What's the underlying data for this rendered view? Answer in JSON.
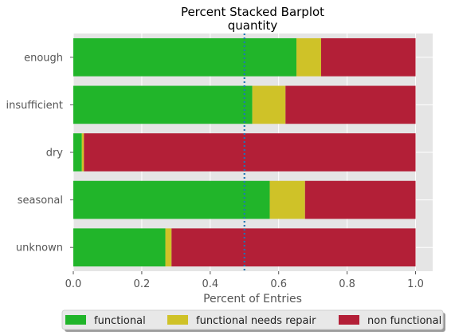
{
  "chart_data": {
    "type": "bar",
    "orientation": "horizontal",
    "stacked": true,
    "title": "Percent Stacked Barplot",
    "subtitle": "quantity",
    "xlabel": "Percent of Entries",
    "ylabel": "",
    "xlim": [
      0,
      1.05
    ],
    "xticks": [
      "0.0",
      "0.2",
      "0.4",
      "0.6",
      "0.8",
      "1.0"
    ],
    "categories": [
      "enough",
      "insufficient",
      "dry",
      "seasonal",
      "unknown"
    ],
    "series": [
      {
        "name": "functional",
        "color": "#21b52a",
        "values": [
          0.652,
          0.523,
          0.025,
          0.574,
          0.269
        ]
      },
      {
        "name": "functional needs repair",
        "color": "#cfc228",
        "values": [
          0.072,
          0.097,
          0.006,
          0.103,
          0.018
        ]
      },
      {
        "name": "non functional",
        "color": "#b31f37",
        "values": [
          0.276,
          0.38,
          0.969,
          0.323,
          0.713
        ]
      }
    ],
    "reference_line": {
      "x": 0.5,
      "style": "dotted",
      "color": "#1f77b4"
    },
    "grid": true,
    "legend_position": "bottom-center"
  }
}
